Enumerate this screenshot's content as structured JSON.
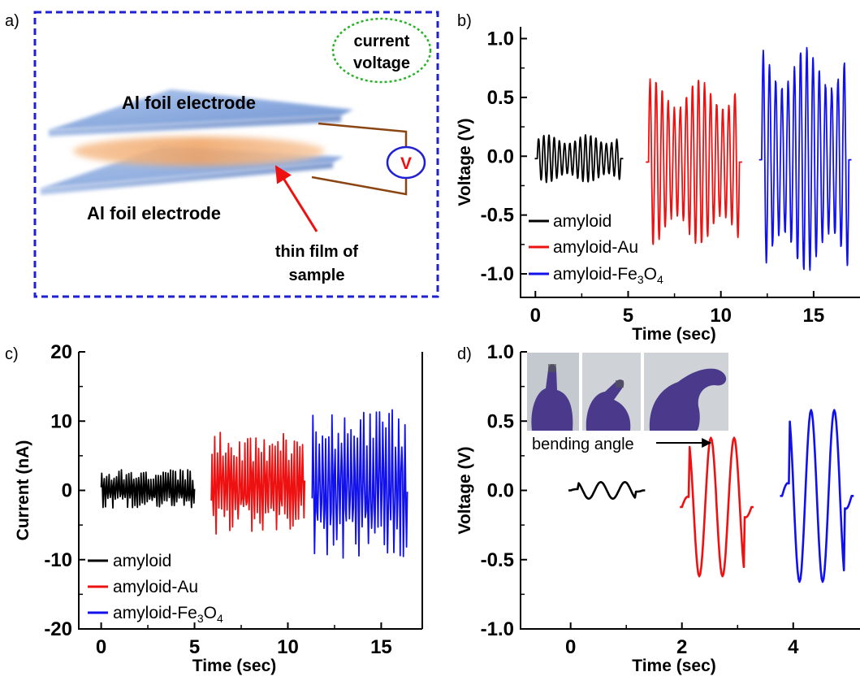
{
  "panel_labels": {
    "a": "a)",
    "b": "b)",
    "c": "c)",
    "d": "d)"
  },
  "schematic": {
    "top_electrode": "Al foil electrode",
    "bottom_electrode": "Al foil electrode",
    "thin_film_line1": "thin film of",
    "thin_film_line2": "sample",
    "bubble_line1": "current",
    "bubble_line2": "voltage",
    "meter": "V",
    "colors": {
      "border": "#1f1fd6",
      "electrode": "#7fa3dd",
      "film": "#f3ad72",
      "wire": "#8b4513",
      "arrow": "#ee1111",
      "bubble": "#2ab32a",
      "meter_ring": "#1f1fd6",
      "meter_text": "#ee1111"
    }
  },
  "legend": {
    "amyloid": "amyloid",
    "amyloid_au": "amyloid-Au",
    "fe_prefix": "amyloid-Fe",
    "fe_sub3": "3",
    "fe_O": "O",
    "fe_sub4": "4"
  },
  "series_colors": {
    "amyloid": "#000000",
    "amyloid-Au": "#ee1111",
    "amyloid-Fe3O4": "#1111ee"
  },
  "inset": {
    "caption": "bending angle"
  },
  "chart_data": [
    {
      "panel": "b",
      "type": "line",
      "xlabel": "Time (sec)",
      "ylabel": "Voltage (V)",
      "xlim": [
        -0.8,
        17.5
      ],
      "ylim": [
        -1.2,
        1.1
      ],
      "xticks": [
        0,
        5,
        10,
        15
      ],
      "yticks": [
        -1.0,
        -0.5,
        0.0,
        0.5,
        1.0
      ],
      "xtick_labels": [
        "0",
        "5",
        "10",
        "15"
      ],
      "ytick_labels": [
        "-1.0",
        "-0.5",
        "0.0",
        "0.5",
        "1.0"
      ],
      "legend_position": "bottom-left",
      "series": [
        {
          "name": "amyloid",
          "t_start": 0.1,
          "t_end": 4.6,
          "cycles": 16,
          "amplitude": 0.2,
          "baseline": -0.02
        },
        {
          "name": "amyloid-Au",
          "t_start": 6.1,
          "t_end": 11.0,
          "cycles": 15,
          "amplitude": 0.7,
          "baseline": -0.05
        },
        {
          "name": "amyloid-Fe3O4",
          "t_start": 12.2,
          "t_end": 16.9,
          "cycles": 14,
          "amplitude": 0.95,
          "baseline": -0.03
        }
      ]
    },
    {
      "panel": "c",
      "type": "line",
      "xlabel": "Time (sec)",
      "ylabel": "Current (nA)",
      "xlim": [
        -1.2,
        17.2
      ],
      "ylim": [
        -20,
        20
      ],
      "xticks": [
        0,
        5,
        10,
        15
      ],
      "yticks": [
        -20,
        -10,
        0,
        10,
        20
      ],
      "xtick_labels": [
        "0",
        "5",
        "10",
        "15"
      ],
      "ytick_labels": [
        "-20",
        "-10",
        "0",
        "10",
        "20"
      ],
      "legend_position": "bottom-left",
      "series": [
        {
          "name": "amyloid",
          "t_start": 0.0,
          "t_end": 5.0,
          "spikes": 38,
          "amplitude": 3.0,
          "baseline": 0.0
        },
        {
          "name": "amyloid-Au",
          "t_start": 5.9,
          "t_end": 10.9,
          "spikes": 34,
          "amplitude": 8.0,
          "baseline": 0.5
        },
        {
          "name": "amyloid-Fe3O4",
          "t_start": 11.3,
          "t_end": 16.4,
          "spikes": 30,
          "amplitude": 12.0,
          "baseline": 0.0
        }
      ]
    },
    {
      "panel": "d",
      "type": "line",
      "xlabel": "Time (sec)",
      "ylabel": "Voltage (V)",
      "xlim": [
        -0.9,
        5.2
      ],
      "ylim": [
        -1.0,
        1.0
      ],
      "xticks": [
        0,
        2,
        4
      ],
      "yticks": [
        -1.0,
        -0.5,
        0.0,
        0.5,
        1.0
      ],
      "xtick_labels": [
        "0",
        "2",
        "4"
      ],
      "ytick_labels": [
        "-1.0",
        "-0.5",
        "0.0",
        "0.5",
        "1.0"
      ],
      "series": [
        {
          "name": "amyloid",
          "t_start": 0.0,
          "t_end": 1.3,
          "cycles": 3,
          "amplitude": 0.06,
          "baseline": 0.0
        },
        {
          "name": "amyloid-Au",
          "t_start": 2.0,
          "t_end": 3.25,
          "cycles": 3,
          "amplitude": 0.5,
          "baseline": -0.12
        },
        {
          "name": "amyloid-Fe3O4",
          "t_start": 3.8,
          "t_end": 5.05,
          "cycles": 3,
          "amplitude": 0.62,
          "baseline": -0.04
        }
      ]
    }
  ]
}
